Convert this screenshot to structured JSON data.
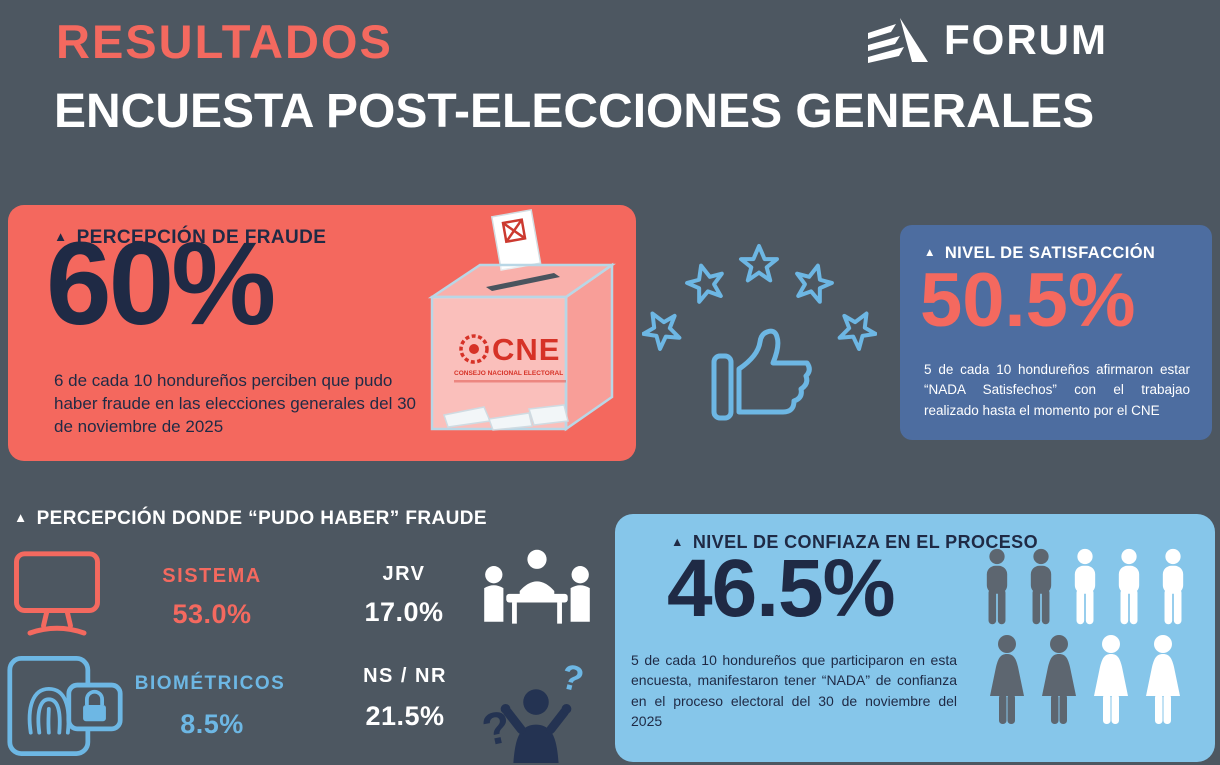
{
  "header": {
    "kicker": "RESULTADOS",
    "title": "ENCUESTA POST-ELECCIONES GENERALES",
    "brand": "FORUM"
  },
  "fraud_card": {
    "title": "PERCEPCIÓN DE FRAUDE",
    "value": "60%",
    "description": "6 de cada 10 hondureños perciben que pudo haber fraude en las elecciones generales del 30 de noviembre de 2025",
    "ballot_box": {
      "org": "CNE",
      "org_subtitle": "CONSEJO NACIONAL ELECTORAL"
    }
  },
  "satisfaction_card": {
    "title": "NIVEL DE SATISFACCIÓN",
    "value": "50.5%",
    "description": "5 de cada 10 hondureños afirmaron estar “NADA Satisfechos” con el trabajao realizado hasta el momento por el CNE"
  },
  "fraud_where": {
    "title": "PERCEPCIÓN DONDE “PUDO HABER” FRAUDE",
    "items": [
      {
        "label": "SISTEMA",
        "value": "53.0%",
        "color": "#f4695f"
      },
      {
        "label": "JRV",
        "value": "17.0%",
        "color": "#ffffff"
      },
      {
        "label": "BIOMÉTRICOS",
        "value": "8.5%",
        "color": "#6db7e4"
      },
      {
        "label": "NS / NR",
        "value": "21.5%",
        "color": "#ffffff"
      }
    ]
  },
  "confidence_card": {
    "title": "NIVEL DE CONFIAZA EN EL PROCESO",
    "value": "46.5%",
    "description": "5 de cada 10 hondureños que participaron en esta encuesta, manifestaron tener “NADA” de confianza en el proceso electoral del 30 de noviembre del 2025",
    "pictogram": {
      "rows": [
        [
          "dark",
          "dark",
          "light",
          "light",
          "light"
        ],
        [
          "dark",
          "dark",
          "light",
          "light"
        ]
      ]
    }
  },
  "colors": {
    "background": "#4d5761",
    "coral": "#f4695f",
    "navy": "#1f2a45",
    "steel_blue": "#4d6da0",
    "sky_blue": "#86c6ea",
    "light_blue": "#6db7e4",
    "white": "#ffffff"
  },
  "chart_data": {
    "type": "table",
    "title": "Encuesta Post-Elecciones Generales — elecciones del 30 de noviembre de 2025",
    "stats": [
      {
        "label": "Percepción de fraude",
        "value": 60,
        "unit": "%"
      },
      {
        "label": "Nivel de satisfacción — “NADA Satisfechos” con el trabajo del CNE",
        "value": 50.5,
        "unit": "%"
      },
      {
        "label": "Nivel de confianza en el proceso — “NADA” de confianza",
        "value": 46.5,
        "unit": "%"
      }
    ],
    "breakdown": {
      "title": "Percepción donde “pudo haber” fraude",
      "categories": [
        "Sistema",
        "JRV",
        "Biométricos",
        "NS / NR"
      ],
      "values": [
        53.0,
        17.0,
        8.5,
        21.5
      ],
      "unit": "%"
    }
  }
}
